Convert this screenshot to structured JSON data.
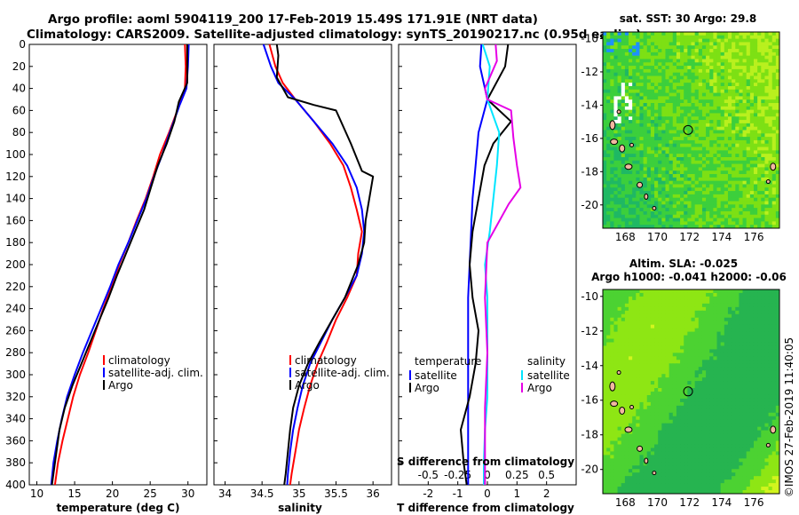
{
  "header": {
    "line1": "Argo profile: aoml 5904119_200 17-Feb-2019 15.49S 171.91E (NRT data)",
    "line2": "Climatology: CARS2009. Satellite-adjusted climatology: synTS_20190217.nc (0.95d earlier)"
  },
  "colors": {
    "clim": "#ff0000",
    "sat": "#0000ff",
    "argo": "#000000",
    "sat_s": "#00e5ff",
    "clim_s": "#e600e6"
  },
  "chart_data": [
    {
      "id": "temperature",
      "type": "line",
      "xlabel": "temperature (deg C)",
      "ylabel": "depth",
      "xlim": [
        9,
        32.5
      ],
      "ylim": [
        0,
        400
      ],
      "xticks": [
        "10",
        "15",
        "20",
        "25",
        "30"
      ],
      "yticks": [
        "0",
        "20",
        "40",
        "60",
        "80",
        "100",
        "120",
        "140",
        "160",
        "180",
        "200",
        "220",
        "240",
        "260",
        "280",
        "300",
        "320",
        "340",
        "360",
        "380",
        "400"
      ],
      "legend": [
        "climatology",
        "satellite-adj. clim.",
        "Argo"
      ],
      "series": [
        {
          "name": "climatology",
          "points": [
            [
              29.6,
              0
            ],
            [
              29.7,
              20
            ],
            [
              29.6,
              40
            ],
            [
              28.6,
              60
            ],
            [
              27.5,
              80
            ],
            [
              26.3,
              100
            ],
            [
              25.4,
              120
            ],
            [
              24.4,
              140
            ],
            [
              23.2,
              160
            ],
            [
              22.1,
              180
            ],
            [
              20.9,
              200
            ],
            [
              19.9,
              220
            ],
            [
              18.8,
              240
            ],
            [
              17.8,
              260
            ],
            [
              16.8,
              280
            ],
            [
              15.7,
              300
            ],
            [
              14.8,
              320
            ],
            [
              14.1,
              340
            ],
            [
              13.4,
              360
            ],
            [
              12.8,
              380
            ],
            [
              12.4,
              400
            ]
          ]
        },
        {
          "name": "satellite-adj. clim.",
          "points": [
            [
              30.1,
              0
            ],
            [
              30.0,
              20
            ],
            [
              29.8,
              40
            ],
            [
              28.9,
              55
            ],
            [
              27.6,
              80
            ],
            [
              26.6,
              100
            ],
            [
              25.5,
              120
            ],
            [
              24.5,
              140
            ],
            [
              23.3,
              160
            ],
            [
              22.1,
              180
            ],
            [
              20.8,
              200
            ],
            [
              19.7,
              220
            ],
            [
              18.5,
              240
            ],
            [
              17.3,
              260
            ],
            [
              16.1,
              280
            ],
            [
              15.0,
              300
            ],
            [
              14.0,
              320
            ],
            [
              13.3,
              340
            ],
            [
              12.7,
              360
            ],
            [
              12.2,
              380
            ],
            [
              11.9,
              400
            ]
          ]
        },
        {
          "name": "Argo",
          "points": [
            [
              29.9,
              0
            ],
            [
              29.9,
              20
            ],
            [
              29.9,
              35
            ],
            [
              28.8,
              52
            ],
            [
              28.2,
              70
            ],
            [
              27.2,
              90
            ],
            [
              26.0,
              110
            ],
            [
              25.1,
              130
            ],
            [
              24.2,
              150
            ],
            [
              23.0,
              170
            ],
            [
              21.8,
              190
            ],
            [
              20.6,
              210
            ],
            [
              19.5,
              230
            ],
            [
              18.3,
              250
            ],
            [
              17.1,
              270
            ],
            [
              15.9,
              290
            ],
            [
              14.7,
              310
            ],
            [
              13.7,
              330
            ],
            [
              13.0,
              350
            ],
            [
              12.6,
              370
            ],
            [
              12.2,
              390
            ],
            [
              12.0,
              400
            ]
          ]
        }
      ]
    },
    {
      "id": "salinity",
      "type": "line",
      "xlabel": "salinity",
      "ylabel": "depth",
      "xlim": [
        33.85,
        36.25
      ],
      "ylim": [
        0,
        400
      ],
      "xticks": [
        "34",
        "34.5",
        "35",
        "35.5",
        "36"
      ],
      "legend": [
        "climatology",
        "satellite-adj. clim.",
        "Argo"
      ],
      "series": [
        {
          "name": "climatology",
          "points": [
            [
              34.6,
              0
            ],
            [
              34.68,
              20
            ],
            [
              34.78,
              35
            ],
            [
              34.95,
              50
            ],
            [
              35.2,
              70
            ],
            [
              35.42,
              90
            ],
            [
              35.6,
              110
            ],
            [
              35.7,
              130
            ],
            [
              35.78,
              150
            ],
            [
              35.85,
              170
            ],
            [
              35.8,
              190
            ],
            [
              35.78,
              210
            ],
            [
              35.65,
              230
            ],
            [
              35.5,
              250
            ],
            [
              35.38,
              270
            ],
            [
              35.25,
              290
            ],
            [
              35.15,
              310
            ],
            [
              35.07,
              330
            ],
            [
              35.0,
              350
            ],
            [
              34.95,
              370
            ],
            [
              34.9,
              390
            ],
            [
              34.88,
              400
            ]
          ]
        },
        {
          "name": "satellite-adj. clim.",
          "points": [
            [
              34.52,
              0
            ],
            [
              34.62,
              20
            ],
            [
              34.72,
              35
            ],
            [
              34.95,
              50
            ],
            [
              35.2,
              70
            ],
            [
              35.45,
              90
            ],
            [
              35.65,
              110
            ],
            [
              35.78,
              130
            ],
            [
              35.85,
              150
            ],
            [
              35.88,
              170
            ],
            [
              35.85,
              190
            ],
            [
              35.78,
              210
            ],
            [
              35.62,
              230
            ],
            [
              35.45,
              250
            ],
            [
              35.3,
              270
            ],
            [
              35.15,
              290
            ],
            [
              35.05,
              310
            ],
            [
              34.98,
              330
            ],
            [
              34.92,
              350
            ],
            [
              34.88,
              370
            ],
            [
              34.85,
              390
            ],
            [
              34.84,
              400
            ]
          ]
        },
        {
          "name": "Argo",
          "points": [
            [
              34.7,
              0
            ],
            [
              34.72,
              10
            ],
            [
              34.7,
              30
            ],
            [
              34.85,
              48
            ],
            [
              35.2,
              55
            ],
            [
              35.5,
              60
            ],
            [
              35.7,
              90
            ],
            [
              35.85,
              115
            ],
            [
              36.0,
              120
            ],
            [
              35.95,
              140
            ],
            [
              35.9,
              160
            ],
            [
              35.88,
              180
            ],
            [
              35.8,
              200
            ],
            [
              35.62,
              230
            ],
            [
              35.45,
              250
            ],
            [
              35.28,
              270
            ],
            [
              35.12,
              290
            ],
            [
              35.0,
              310
            ],
            [
              34.92,
              330
            ],
            [
              34.88,
              350
            ],
            [
              34.85,
              370
            ],
            [
              34.82,
              390
            ],
            [
              34.8,
              400
            ]
          ]
        }
      ]
    },
    {
      "id": "difference",
      "type": "line",
      "xlabel": "T difference from climatology",
      "xlabel_top": "S difference from climatology",
      "ylabel": "depth",
      "xlim": [
        -3,
        3
      ],
      "ylim": [
        0,
        400
      ],
      "xticks": [
        "-2",
        "-1",
        "0",
        "1",
        "2"
      ],
      "xticks_top": [
        "-0.5",
        "-0.25",
        "0",
        "0.25",
        "0.5"
      ],
      "legend_title_t": "temperature",
      "legend_title_s": "salinity",
      "legend_t": [
        "satellite",
        "Argo"
      ],
      "legend_s": [
        "satellite",
        "Argo"
      ],
      "series": [
        {
          "name": "T satellite",
          "points": [
            [
              -0.2,
              0
            ],
            [
              -0.25,
              20
            ],
            [
              0,
              50
            ],
            [
              -0.3,
              80
            ],
            [
              -0.4,
              110
            ],
            [
              -0.5,
              140
            ],
            [
              -0.55,
              170
            ],
            [
              -0.6,
              200
            ],
            [
              -0.65,
              230
            ],
            [
              -0.65,
              260
            ],
            [
              -0.65,
              290
            ],
            [
              -0.65,
              320
            ],
            [
              -0.65,
              350
            ],
            [
              -0.65,
              380
            ],
            [
              -0.65,
              400
            ]
          ]
        },
        {
          "name": "T Argo",
          "points": [
            [
              0.7,
              0
            ],
            [
              0.6,
              20
            ],
            [
              0.0,
              50
            ],
            [
              0.8,
              70
            ],
            [
              0.2,
              90
            ],
            [
              -0.1,
              110
            ],
            [
              -0.3,
              140
            ],
            [
              -0.5,
              170
            ],
            [
              -0.6,
              200
            ],
            [
              -0.5,
              230
            ],
            [
              -0.3,
              260
            ],
            [
              -0.4,
              290
            ],
            [
              -0.6,
              320
            ],
            [
              -0.9,
              350
            ],
            [
              -0.8,
              380
            ],
            [
              -0.7,
              400
            ]
          ]
        },
        {
          "name": "S satellite",
          "points": [
            [
              -0.04,
              0
            ],
            [
              0.02,
              20
            ],
            [
              0.0,
              50
            ],
            [
              0.1,
              80
            ],
            [
              0.08,
              110
            ],
            [
              0.05,
              140
            ],
            [
              0.02,
              170
            ],
            [
              -0.02,
              200
            ],
            [
              0.0,
              230
            ],
            [
              0.0,
              260
            ],
            [
              0.0,
              290
            ],
            [
              0.0,
              320
            ],
            [
              -0.02,
              350
            ],
            [
              -0.03,
              380
            ],
            [
              -0.03,
              400
            ]
          ]
        },
        {
          "name": "S Argo",
          "points": [
            [
              0.07,
              0
            ],
            [
              0.08,
              15
            ],
            [
              -0.02,
              40
            ],
            [
              0.0,
              50
            ],
            [
              0.2,
              60
            ],
            [
              0.22,
              85
            ],
            [
              0.25,
              110
            ],
            [
              0.28,
              130
            ],
            [
              0.18,
              145
            ],
            [
              0.0,
              180
            ],
            [
              -0.02,
              230
            ],
            [
              0.0,
              280
            ],
            [
              -0.02,
              330
            ],
            [
              -0.02,
              400
            ]
          ]
        }
      ]
    }
  ],
  "maps": [
    {
      "id": "sst",
      "title_line1": "sat. SST: 30 Argo: 29.8",
      "xticks": [
        "168",
        "170",
        "172",
        "174",
        "176"
      ],
      "yticks": [
        "-10",
        "-12",
        "-14",
        "-16",
        "-18",
        "-20"
      ],
      "marker_lon": 171.91,
      "marker_lat": -15.49
    },
    {
      "id": "sla",
      "title_line1": "Altim. SLA: -0.025",
      "title_line2": "Argo h1000: -0.041 h2000: -0.06",
      "xticks": [
        "168",
        "170",
        "172",
        "174",
        "176"
      ],
      "yticks": [
        "-10",
        "-12",
        "-14",
        "-16",
        "-18",
        "-20"
      ],
      "marker_lon": 171.91,
      "marker_lat": -15.49
    }
  ],
  "side_label": "©IMOS 27-Feb-2019 11:40:05"
}
